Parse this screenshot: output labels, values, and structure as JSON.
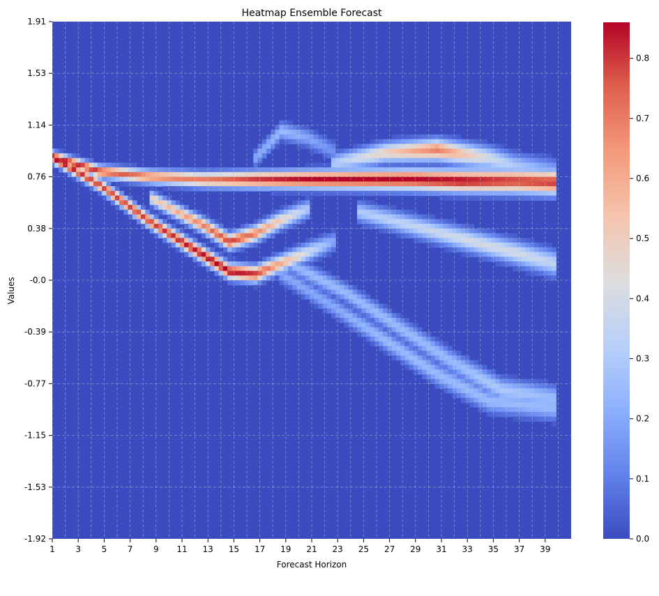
{
  "chart_data": {
    "type": "heatmap",
    "title": "Heatmap Ensemble Forecast",
    "xlabel": "Forecast Horizon",
    "ylabel": "Values",
    "x_range": [
      1,
      40
    ],
    "y_range": [
      -1.92,
      1.91
    ],
    "x_tick_labels": [
      "1",
      "3",
      "5",
      "7",
      "9",
      "11",
      "13",
      "15",
      "17",
      "19",
      "21",
      "23",
      "25",
      "27",
      "29",
      "31",
      "33",
      "35",
      "37",
      "39"
    ],
    "y_tick_labels": [
      "1.91",
      "1.53",
      "1.14",
      "0.76",
      "0.38",
      "-0.0",
      "-0.39",
      "-0.77",
      "-1.15",
      "-1.53",
      "-1.92"
    ],
    "colorbar": {
      "colormap": "coolwarm",
      "min": 0.0,
      "max": 0.86,
      "tick_labels": [
        "0.0",
        "0.1",
        "0.2",
        "0.3",
        "0.4",
        "0.5",
        "0.6",
        "0.7",
        "0.8"
      ],
      "tick_values": [
        0.0,
        0.1,
        0.2,
        0.3,
        0.4,
        0.5,
        0.6,
        0.7,
        0.8
      ]
    },
    "grid": true,
    "grid_style": "dashed",
    "colors": {
      "low": "#3b4cc0",
      "mid": "#dddddd",
      "high": "#b40426"
    },
    "ensemble_paths_approx": [
      {
        "x": [
          1,
          5,
          9,
          13,
          17,
          21,
          25,
          29,
          33,
          37,
          40
        ],
        "y": [
          0.92,
          0.8,
          0.76,
          0.74,
          0.74,
          0.74,
          0.74,
          0.74,
          0.73,
          0.73,
          0.72
        ],
        "density": [
          0.86,
          0.8,
          0.7,
          0.7,
          0.8,
          0.86,
          0.86,
          0.86,
          0.86,
          0.8,
          0.8
        ]
      },
      {
        "x": [
          1,
          5,
          9,
          13,
          15,
          17,
          19,
          21,
          23
        ],
        "y": [
          0.92,
          0.7,
          0.42,
          0.18,
          0.06,
          0.04,
          0.12,
          0.2,
          0.28
        ],
        "density": [
          0.86,
          0.8,
          0.8,
          0.86,
          0.86,
          0.8,
          0.6,
          0.4,
          0.2
        ]
      },
      {
        "x": [
          9,
          13,
          15,
          17,
          19,
          21
        ],
        "y": [
          0.6,
          0.4,
          0.28,
          0.34,
          0.44,
          0.52
        ],
        "density": [
          0.5,
          0.7,
          0.8,
          0.7,
          0.5,
          0.3
        ]
      },
      {
        "x": [
          23,
          27,
          31,
          35,
          37,
          40
        ],
        "y": [
          0.86,
          0.94,
          0.96,
          0.9,
          0.84,
          0.8
        ],
        "density": [
          0.3,
          0.5,
          0.7,
          0.4,
          0.3,
          0.2
        ]
      },
      {
        "x": [
          20,
          24,
          28,
          32,
          36,
          40
        ],
        "y": [
          0.1,
          -0.1,
          -0.35,
          -0.6,
          -0.82,
          -0.88
        ],
        "density": [
          0.25,
          0.25,
          0.25,
          0.25,
          0.3,
          0.25
        ]
      },
      {
        "x": [
          19,
          23,
          27,
          31,
          35,
          40
        ],
        "y": [
          0.04,
          -0.2,
          -0.45,
          -0.7,
          -0.9,
          -0.95
        ],
        "density": [
          0.2,
          0.2,
          0.25,
          0.25,
          0.25,
          0.25
        ]
      },
      {
        "x": [
          25,
          29,
          33,
          37,
          40
        ],
        "y": [
          0.5,
          0.4,
          0.3,
          0.2,
          0.12
        ],
        "density": [
          0.3,
          0.35,
          0.4,
          0.4,
          0.35
        ]
      },
      {
        "x": [
          17,
          19,
          21,
          23
        ],
        "y": [
          0.9,
          1.1,
          1.05,
          0.95
        ],
        "density": [
          0.2,
          0.25,
          0.2,
          0.15
        ]
      }
    ]
  }
}
